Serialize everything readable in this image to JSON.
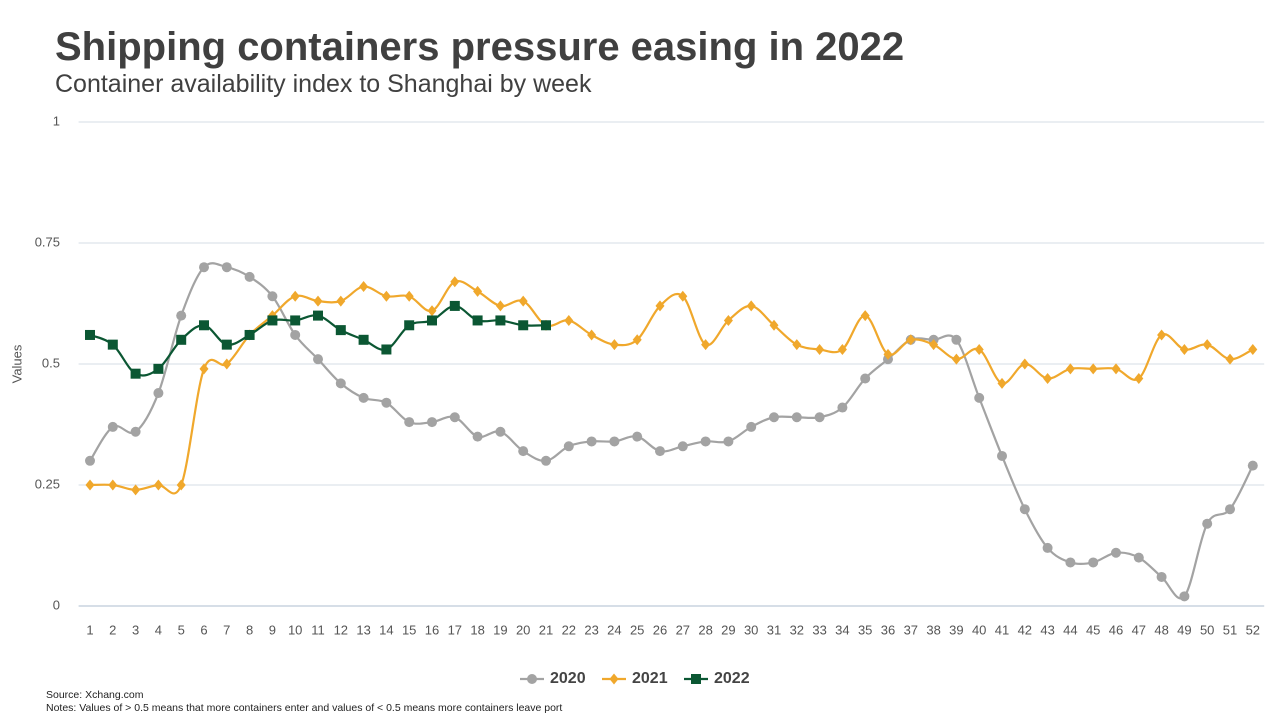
{
  "chart_data": {
    "type": "line",
    "title": "Shipping containers pressure easing in 2022",
    "subtitle": "Container availability index to Shanghai by week",
    "y_label": "Values",
    "source": "Source: Xchang.com",
    "notes": "Notes: Values of > 0.5 means that more containers enter and values of < 0.5 means more containers leave port",
    "categories": [
      "1",
      "2",
      "3",
      "4",
      "5",
      "6",
      "7",
      "8",
      "9",
      "10",
      "11",
      "12",
      "13",
      "14",
      "15",
      "16",
      "17",
      "18",
      "19",
      "20",
      "21",
      "22",
      "23",
      "24",
      "25",
      "26",
      "27",
      "28",
      "29",
      "30",
      "31",
      "32",
      "33",
      "34",
      "35",
      "36",
      "37",
      "38",
      "39",
      "40",
      "41",
      "42",
      "43",
      "44",
      "45",
      "46",
      "47",
      "48",
      "49",
      "50",
      "51",
      "52"
    ],
    "series": [
      {
        "name": "2020",
        "color": "#a3a3a3",
        "marker": "circle",
        "values": [
          0.3,
          0.37,
          0.36,
          0.44,
          0.6,
          0.7,
          0.7,
          0.68,
          0.64,
          0.56,
          0.51,
          0.46,
          0.43,
          0.42,
          0.38,
          0.38,
          0.39,
          0.35,
          0.36,
          0.32,
          0.3,
          0.33,
          0.34,
          0.34,
          0.35,
          0.32,
          0.33,
          0.34,
          0.34,
          0.37,
          0.39,
          0.39,
          0.39,
          0.41,
          0.47,
          0.51,
          0.55,
          0.55,
          0.55,
          0.43,
          0.31,
          0.2,
          0.12,
          0.09,
          0.09,
          0.11,
          0.1,
          0.06,
          0.02,
          0.17,
          0.2,
          0.29
        ]
      },
      {
        "name": "2021",
        "color": "#f0a82c",
        "marker": "diamond",
        "values": [
          0.25,
          0.25,
          0.24,
          0.25,
          0.25,
          0.49,
          0.5,
          0.56,
          0.6,
          0.64,
          0.63,
          0.63,
          0.66,
          0.64,
          0.64,
          0.61,
          0.67,
          0.65,
          0.62,
          0.63,
          0.58,
          0.59,
          0.56,
          0.54,
          0.55,
          0.62,
          0.64,
          0.54,
          0.59,
          0.62,
          0.58,
          0.54,
          0.53,
          0.53,
          0.6,
          0.52,
          0.55,
          0.54,
          0.51,
          0.53,
          0.46,
          0.5,
          0.47,
          0.49,
          0.49,
          0.49,
          0.47,
          0.56,
          0.53,
          0.54,
          0.51,
          0.53
        ]
      },
      {
        "name": "2022",
        "color": "#0b5733",
        "marker": "square",
        "values": [
          0.56,
          0.54,
          0.48,
          0.49,
          0.55,
          0.58,
          0.54,
          0.56,
          0.59,
          0.59,
          0.6,
          0.57,
          0.55,
          0.53,
          0.58,
          0.59,
          0.62,
          0.59,
          0.59,
          0.58,
          0.58,
          null,
          null,
          null,
          null,
          null,
          null,
          null,
          null,
          null,
          null,
          null,
          null,
          null,
          null,
          null,
          null,
          null,
          null,
          null,
          null,
          null,
          null,
          null,
          null,
          null,
          null,
          null,
          null,
          null,
          null,
          null
        ]
      }
    ],
    "ylim": [
      0,
      1
    ],
    "yticks": [
      0,
      0.25,
      0.5,
      0.75,
      1
    ],
    "grid": true,
    "legend": "bottom"
  }
}
